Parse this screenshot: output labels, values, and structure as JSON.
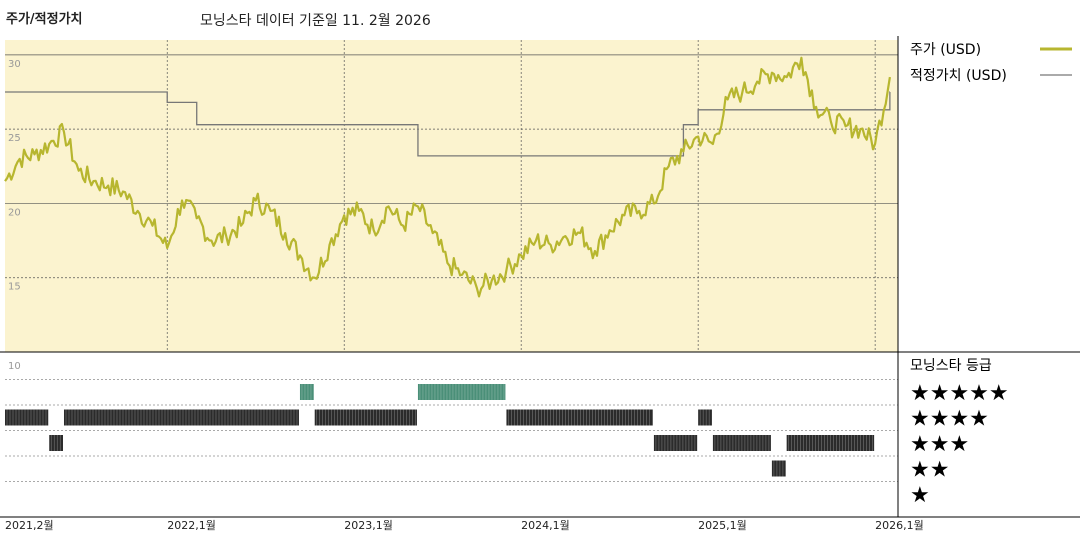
{
  "header": {
    "title": "주가/적정가치",
    "subtitle": "모닝스타 데이터 기준일 11. 2월 2026"
  },
  "legend": {
    "price_label": "주가 (USD)",
    "fair_label": "적정가치 (USD)",
    "rating_title": "모닝스타 등급"
  },
  "colors": {
    "panel_bg": "#fbf3cf",
    "price_line": "#b7b62f",
    "fair_line": "#777777",
    "rating_black": "#2b2b2b",
    "rating_green": "#4a8f78"
  },
  "chart_data": [
    {
      "type": "line",
      "x_axis": "date",
      "xlim": [
        "2021-02",
        "2026-02"
      ],
      "ylim": [
        10,
        31
      ],
      "yticks": [
        15,
        20,
        25,
        30
      ],
      "xtick_labels": [
        "2021,2월",
        "2022,1월",
        "2023,1월",
        "2024,1월",
        "2025,1월",
        "2026,1월"
      ],
      "series": [
        {
          "name": "주가 (USD)",
          "points": [
            [
              "2021-02",
              21.5
            ],
            [
              "2021-03",
              23.0
            ],
            [
              "2021-04",
              23.3
            ],
            [
              "2021-05",
              24.0
            ],
            [
              "2021-06",
              24.8
            ],
            [
              "2021-07",
              22.2
            ],
            [
              "2021-08",
              21.5
            ],
            [
              "2021-09",
              21.2
            ],
            [
              "2021-10",
              20.8
            ],
            [
              "2021-11",
              19.5
            ],
            [
              "2021-12",
              18.5
            ],
            [
              "2022-01",
              17.0
            ],
            [
              "2022-02",
              20.2
            ],
            [
              "2022-03",
              19.0
            ],
            [
              "2022-04",
              17.5
            ],
            [
              "2022-05",
              17.8
            ],
            [
              "2022-06",
              18.5
            ],
            [
              "2022-07",
              20.2
            ],
            [
              "2022-08",
              19.5
            ],
            [
              "2022-09",
              18.0
            ],
            [
              "2022-10",
              16.5
            ],
            [
              "2022-11",
              15.0
            ],
            [
              "2022-12",
              17.2
            ],
            [
              "2023-01",
              19.2
            ],
            [
              "2023-02",
              19.5
            ],
            [
              "2023-03",
              18.2
            ],
            [
              "2023-04",
              19.8
            ],
            [
              "2023-05",
              18.5
            ],
            [
              "2023-06",
              19.8
            ],
            [
              "2023-07",
              18.0
            ],
            [
              "2023-08",
              16.0
            ],
            [
              "2023-09",
              15.2
            ],
            [
              "2023-10",
              14.3
            ],
            [
              "2023-11",
              14.8
            ],
            [
              "2023-12",
              15.5
            ],
            [
              "2024-01",
              16.5
            ],
            [
              "2024-02",
              17.5
            ],
            [
              "2024-03",
              17.2
            ],
            [
              "2024-04",
              17.8
            ],
            [
              "2024-05",
              18.0
            ],
            [
              "2024-06",
              16.8
            ],
            [
              "2024-07",
              18.2
            ],
            [
              "2024-08",
              19.2
            ],
            [
              "2024-09",
              19.5
            ],
            [
              "2024-10",
              20.0
            ],
            [
              "2024-11",
              22.5
            ],
            [
              "2024-12",
              23.5
            ],
            [
              "2025-01",
              24.5
            ],
            [
              "2025-02",
              24.0
            ],
            [
              "2025-03",
              27.0
            ],
            [
              "2025-04",
              27.5
            ],
            [
              "2025-05",
              28.2
            ],
            [
              "2025-06",
              28.8
            ],
            [
              "2025-07",
              28.5
            ],
            [
              "2025-08",
              29.8
            ],
            [
              "2025-09",
              26.5
            ],
            [
              "2025-10",
              25.5
            ],
            [
              "2025-11",
              25.2
            ],
            [
              "2025-12",
              25.0
            ],
            [
              "2026-01",
              24.0
            ],
            [
              "2026-02",
              28.5
            ]
          ]
        },
        {
          "name": "적정가치 (USD)",
          "steps": [
            [
              "2021-02",
              27.5
            ],
            [
              "2022-01",
              26.8
            ],
            [
              "2022-03",
              25.3
            ],
            [
              "2023-06",
              23.2
            ],
            [
              "2024-12",
              25.3
            ],
            [
              "2025-01",
              26.3
            ],
            [
              "2025-11",
              26.3
            ],
            [
              "2026-02",
              27.5
            ]
          ]
        }
      ]
    },
    {
      "type": "rating-bars",
      "title": "모닝스타 등급",
      "levels": [
        "★★★★★",
        "★★★★",
        "★★★",
        "★★",
        "★"
      ],
      "ylim": [
        0,
        10
      ],
      "ytick": "10",
      "segments": [
        {
          "stars": 4,
          "from": "2021-02",
          "to": "2021-05"
        },
        {
          "stars": 3,
          "from": "2021-05",
          "to": "2021-06"
        },
        {
          "stars": 4,
          "from": "2021-06",
          "to": "2022-10"
        },
        {
          "stars": 5,
          "from": "2022-10",
          "to": "2022-11"
        },
        {
          "stars": 4,
          "from": "2022-11",
          "to": "2023-06"
        },
        {
          "stars": 5,
          "from": "2023-06",
          "to": "2023-12"
        },
        {
          "stars": 4,
          "from": "2023-12",
          "to": "2024-10"
        },
        {
          "stars": 3,
          "from": "2024-10",
          "to": "2025-01"
        },
        {
          "stars": 4,
          "from": "2025-01",
          "to": "2025-02"
        },
        {
          "stars": 3,
          "from": "2025-02",
          "to": "2025-06"
        },
        {
          "stars": 2,
          "from": "2025-06",
          "to": "2025-07"
        },
        {
          "stars": 3,
          "from": "2025-07",
          "to": "2026-01"
        }
      ]
    }
  ]
}
